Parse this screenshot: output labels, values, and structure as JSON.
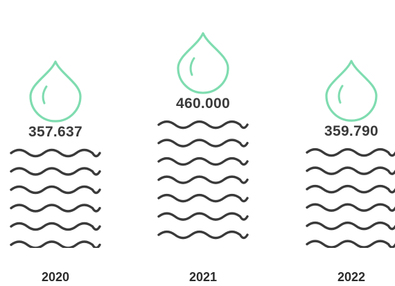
{
  "chart_data": {
    "type": "bar",
    "categories": [
      "2020",
      "2021",
      "2022"
    ],
    "values": [
      357637,
      460000,
      359790
    ],
    "value_labels": [
      "357.637",
      "460.000",
      "359.790"
    ],
    "icon": "water-drop-icon",
    "fill_pattern": "wave-lines",
    "colors": {
      "drop": "#7fdcb0",
      "waves": "#3a3a3a",
      "text": "#3a3a3a"
    },
    "grid": false,
    "legend": "none"
  }
}
